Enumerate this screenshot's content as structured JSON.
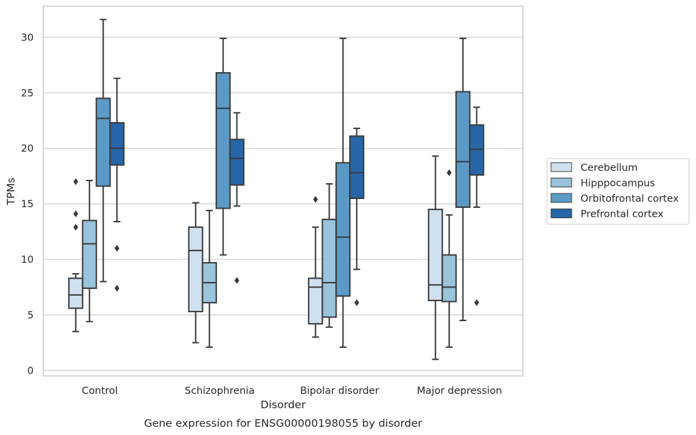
{
  "chart_data": {
    "type": "box",
    "title": "Gene expression for ENSG00000198055 by disorder",
    "xlabel": "Disorder",
    "ylabel": "TPMs",
    "categories": [
      "Control",
      "Schizophrenia",
      "Bipolar disorder",
      "Major depression"
    ],
    "ylim": [
      -0.5,
      32.8
    ],
    "yticks": [
      0,
      5,
      10,
      15,
      20,
      25,
      30
    ],
    "grid": "horizontal",
    "legend_position": "right",
    "series": [
      {
        "name": "Cerebellum",
        "color": "#cfe0f0",
        "boxes": [
          {
            "whislo": 3.5,
            "q1": 5.6,
            "med": 6.8,
            "q3": 8.3,
            "whishi": 8.7,
            "fliers": [
              12.9,
              14.1,
              17.0
            ]
          },
          {
            "whislo": 2.5,
            "q1": 5.3,
            "med": 10.8,
            "q3": 12.9,
            "whishi": 15.1,
            "fliers": []
          },
          {
            "whislo": 3.0,
            "q1": 4.2,
            "med": 7.5,
            "q3": 8.3,
            "whishi": 12.9,
            "fliers": [
              15.4
            ]
          },
          {
            "whislo": 1.0,
            "q1": 6.3,
            "med": 7.7,
            "q3": 14.5,
            "whishi": 19.3,
            "fliers": []
          }
        ]
      },
      {
        "name": "Hipppocampus",
        "color": "#9ac3dc",
        "boxes": [
          {
            "whislo": 4.4,
            "q1": 7.4,
            "med": 11.4,
            "q3": 13.5,
            "whishi": 17.1,
            "fliers": []
          },
          {
            "whislo": 2.1,
            "q1": 6.1,
            "med": 7.9,
            "q3": 9.7,
            "whishi": 14.4,
            "fliers": []
          },
          {
            "whislo": 3.9,
            "q1": 4.8,
            "med": 7.9,
            "q3": 13.6,
            "whishi": 16.8,
            "fliers": []
          },
          {
            "whislo": 2.1,
            "q1": 6.2,
            "med": 7.5,
            "q3": 10.4,
            "whishi": 14.0,
            "fliers": [
              17.8
            ]
          }
        ]
      },
      {
        "name": "Orbitofrontal cortex",
        "color": "#5b9ac6",
        "boxes": [
          {
            "whislo": 8.0,
            "q1": 16.6,
            "med": 22.7,
            "q3": 24.5,
            "whishi": 31.6,
            "fliers": []
          },
          {
            "whislo": 10.4,
            "q1": 14.6,
            "med": 23.6,
            "q3": 26.8,
            "whishi": 29.9,
            "fliers": []
          },
          {
            "whislo": 2.1,
            "q1": 6.7,
            "med": 12.0,
            "q3": 18.7,
            "whishi": 29.9,
            "fliers": []
          },
          {
            "whislo": 4.5,
            "q1": 14.7,
            "med": 18.8,
            "q3": 25.1,
            "whishi": 29.9,
            "fliers": []
          }
        ]
      },
      {
        "name": "Prefrontal cortex",
        "color": "#2666a8",
        "boxes": [
          {
            "whislo": 13.4,
            "q1": 18.5,
            "med": 20.0,
            "q3": 22.3,
            "whishi": 26.3,
            "fliers": [
              7.4,
              11.0
            ]
          },
          {
            "whislo": 14.8,
            "q1": 16.7,
            "med": 19.1,
            "q3": 20.8,
            "whishi": 23.2,
            "fliers": [
              8.1
            ]
          },
          {
            "whislo": 9.1,
            "q1": 15.5,
            "med": 17.8,
            "q3": 21.1,
            "whishi": 21.8,
            "fliers": [
              6.1
            ]
          },
          {
            "whislo": 14.7,
            "q1": 17.6,
            "med": 19.9,
            "q3": 22.1,
            "whishi": 23.7,
            "fliers": [
              6.1
            ]
          }
        ]
      }
    ]
  }
}
